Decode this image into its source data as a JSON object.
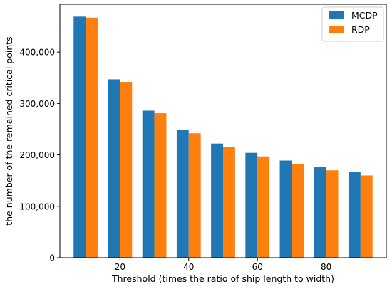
{
  "chart_data": {
    "type": "bar",
    "title": "",
    "xlabel": "Threshold (times the ratio of ship length to width)",
    "ylabel": "the number of the remained critical points",
    "categories": [
      10,
      20,
      30,
      40,
      50,
      60,
      70,
      80,
      90
    ],
    "series": [
      {
        "name": "MCDP",
        "color": "#1f77b4",
        "values": [
          469000,
          347000,
          286000,
          248000,
          222000,
          204000,
          189000,
          177000,
          167000
        ]
      },
      {
        "name": "RDP",
        "color": "#ff7f0e",
        "values": [
          467000,
          342000,
          281000,
          242000,
          216000,
          197000,
          182000,
          170000,
          160000
        ]
      }
    ],
    "x_ticks": [
      20,
      40,
      60,
      80
    ],
    "x_tick_labels": [
      "20",
      "40",
      "60",
      "80"
    ],
    "y_ticks": [
      0,
      100000,
      200000,
      300000,
      400000
    ],
    "y_tick_labels": [
      "0",
      "100,000",
      "200,000",
      "300,000",
      "400,000"
    ],
    "xlim": [
      2.5,
      97.5
    ],
    "ylim": [
      0,
      493000
    ],
    "legend": "upper right",
    "grid": false
  }
}
